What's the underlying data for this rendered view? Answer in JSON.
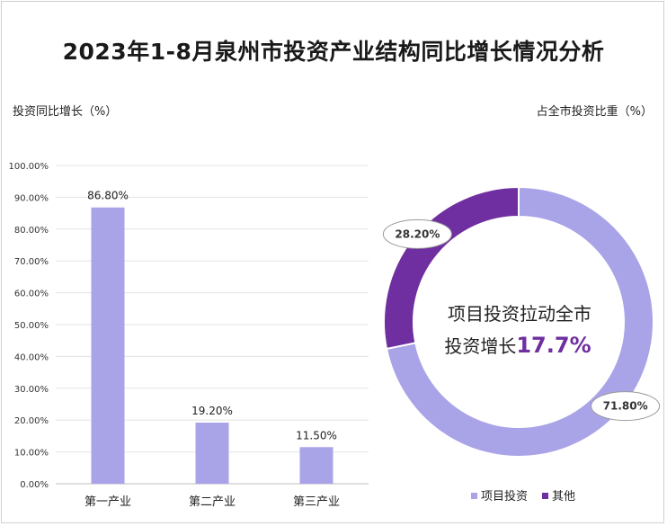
{
  "title": "2023年1-8月泉州市投资产业结构同比增长情况分析",
  "chart_data": [
    {
      "type": "bar",
      "ylabel": "投资同比增长（%）",
      "categories": [
        "第一产业",
        "第二产业",
        "第三产业"
      ],
      "values": [
        86.8,
        19.2,
        11.5
      ],
      "data_labels": [
        "86.80%",
        "19.20%",
        "11.50%"
      ],
      "ylim": [
        0,
        100
      ],
      "yticks": [
        "0.00%",
        "10.00%",
        "20.00%",
        "30.00%",
        "40.00%",
        "50.00%",
        "60.00%",
        "70.00%",
        "80.00%",
        "90.00%",
        "100.00%"
      ],
      "grid": true,
      "bar_color": "#a9a3e8"
    },
    {
      "type": "pie",
      "label": "占全市投资比重（%）",
      "donut": true,
      "slices": [
        {
          "name": "项目投资",
          "value": 71.8,
          "label": "71.80%",
          "color": "#a9a3e8"
        },
        {
          "name": "其他",
          "value": 28.2,
          "label": "28.20%",
          "color": "#6f2fa0"
        }
      ],
      "center_text": {
        "line1": "项目投资拉动全市",
        "line2": "投资增长",
        "highlight": "17.7%",
        "highlight_color": "#6f2fa0"
      },
      "legend_position": "bottom-right"
    }
  ]
}
